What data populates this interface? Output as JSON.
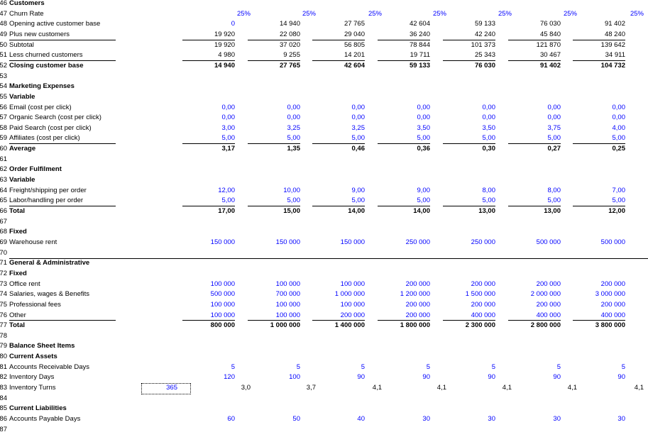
{
  "rows": [
    {
      "n": "46",
      "label": "Customers",
      "bold": true
    },
    {
      "n": "47",
      "label": "Churn Rate",
      "cells": [
        "25%",
        "25%",
        "25%",
        "25%",
        "25%",
        "25%",
        "25%"
      ],
      "blue": true,
      "shift": true
    },
    {
      "n": "48",
      "label": "Opening active customer base",
      "cells": [
        "0",
        "14 940",
        "27 765",
        "42 604",
        "59 133",
        "76 030",
        "91 402"
      ],
      "blueFirst": true
    },
    {
      "n": "49",
      "label": "Plus new customers",
      "cells": [
        "19 920",
        "22 080",
        "29 040",
        "36 240",
        "42 240",
        "45 840",
        "48 240"
      ],
      "ul": true
    },
    {
      "n": "50",
      "label": "Subtotal",
      "cells": [
        "19 920",
        "37 020",
        "56 805",
        "78 844",
        "101 373",
        "121 870",
        "139 642"
      ]
    },
    {
      "n": "51",
      "label": "Less churned customers",
      "cells": [
        "4 980",
        "9 255",
        "14 201",
        "19 711",
        "25 343",
        "30 467",
        "34 911"
      ],
      "ul": true
    },
    {
      "n": "52",
      "label": "Closing customer base",
      "bold": true,
      "cells": [
        "14 940",
        "27 765",
        "42 604",
        "59 133",
        "76 030",
        "91 402",
        "104 732"
      ],
      "cellsBold": true
    },
    {
      "n": "53",
      "label": ""
    },
    {
      "n": "54",
      "label": "Marketing Expenses",
      "bold": true
    },
    {
      "n": "55",
      "label": "Variable",
      "bold": true
    },
    {
      "n": "56",
      "label": "Email (cost per click)",
      "cells": [
        "0,00",
        "0,00",
        "0,00",
        "0,00",
        "0,00",
        "0,00",
        "0,00"
      ],
      "blue": true
    },
    {
      "n": "57",
      "label": "Organic Search (cost per click)",
      "cells": [
        "0,00",
        "0,00",
        "0,00",
        "0,00",
        "0,00",
        "0,00",
        "0,00"
      ],
      "blue": true
    },
    {
      "n": "58",
      "label": "Paid Search (cost per click)",
      "cells": [
        "3,00",
        "3,25",
        "3,25",
        "3,50",
        "3,50",
        "3,75",
        "4,00"
      ],
      "blue": true
    },
    {
      "n": "59",
      "label": "Affiliates (cost per click)",
      "cells": [
        "5,00",
        "5,00",
        "5,00",
        "5,00",
        "5,00",
        "5,00",
        "5,00"
      ],
      "blue": true,
      "ul": true
    },
    {
      "n": "60",
      "label": "Average",
      "bold": true,
      "cells": [
        "3,17",
        "1,35",
        "0,46",
        "0,36",
        "0,30",
        "0,27",
        "0,25"
      ],
      "cellsBold": true
    },
    {
      "n": "61",
      "label": ""
    },
    {
      "n": "62",
      "label": "Order Fulfilment",
      "bold": true
    },
    {
      "n": "63",
      "label": "Variable",
      "bold": true
    },
    {
      "n": "64",
      "label": "Freight/shipping per order",
      "cells": [
        "12,00",
        "10,00",
        "9,00",
        "9,00",
        "8,00",
        "8,00",
        "7,00"
      ],
      "blue": true
    },
    {
      "n": "65",
      "label": "Labor/handling per order",
      "cells": [
        "5,00",
        "5,00",
        "5,00",
        "5,00",
        "5,00",
        "5,00",
        "5,00"
      ],
      "blue": true,
      "ul": true
    },
    {
      "n": "66",
      "label": "Total",
      "bold": true,
      "cells": [
        "17,00",
        "15,00",
        "14,00",
        "14,00",
        "13,00",
        "13,00",
        "12,00"
      ],
      "cellsBold": true
    },
    {
      "n": "67",
      "label": ""
    },
    {
      "n": "68",
      "label": "Fixed",
      "bold": true
    },
    {
      "n": "69",
      "label": "Warehouse rent",
      "cells": [
        "150 000",
        "150 000",
        "150 000",
        "250 000",
        "250 000",
        "500 000",
        "500 000"
      ],
      "blue": true
    },
    {
      "n": "70",
      "label": ""
    },
    {
      "n": "71",
      "label": "General & Administrative",
      "bold": true,
      "topline": true
    },
    {
      "n": "72",
      "label": "Fixed",
      "bold": true
    },
    {
      "n": "73",
      "label": "Office rent",
      "cells": [
        "100 000",
        "100 000",
        "100 000",
        "200 000",
        "200 000",
        "200 000",
        "200 000"
      ],
      "blue": true
    },
    {
      "n": "74",
      "label": "Salaries, wages & Benefits",
      "cells": [
        "500 000",
        "700 000",
        "1 000 000",
        "1 200 000",
        "1 500 000",
        "2 000 000",
        "3 000 000"
      ],
      "blue": true
    },
    {
      "n": "75",
      "label": "Professional fees",
      "cells": [
        "100 000",
        "100 000",
        "100 000",
        "200 000",
        "200 000",
        "200 000",
        "200 000"
      ],
      "blue": true
    },
    {
      "n": "76",
      "label": "Other",
      "cells": [
        "100 000",
        "100 000",
        "200 000",
        "200 000",
        "400 000",
        "400 000",
        "400 000"
      ],
      "blue": true,
      "ul": true
    },
    {
      "n": "77",
      "label": "Total",
      "bold": true,
      "cells": [
        "800 000",
        "1 000 000",
        "1 400 000",
        "1 800 000",
        "2 300 000",
        "2 800 000",
        "3 800 000"
      ],
      "cellsBold": true
    },
    {
      "n": "78",
      "label": ""
    },
    {
      "n": "79",
      "label": "Balance Sheet Items",
      "bold": true
    },
    {
      "n": "80",
      "label": "Current Assets",
      "bold": true
    },
    {
      "n": "81",
      "label": "Accounts Receivable Days",
      "cells": [
        "5",
        "5",
        "5",
        "5",
        "5",
        "5",
        "5"
      ],
      "blue": true
    },
    {
      "n": "82",
      "label": "Inventory Days",
      "cells": [
        "120",
        "100",
        "90",
        "90",
        "90",
        "90",
        "90"
      ],
      "blue": true
    },
    {
      "n": "83",
      "label": "Inventory Turns",
      "extraCells": [
        "3,0",
        "3,7",
        "4,1",
        "4,1",
        "4,1",
        "4,1",
        "4,1"
      ],
      "selected": "365"
    },
    {
      "n": "84",
      "label": ""
    },
    {
      "n": "85",
      "label": "Current Liabilities",
      "bold": true
    },
    {
      "n": "86",
      "label": "Accounts Payable Days",
      "cells": [
        "60",
        "50",
        "40",
        "30",
        "30",
        "30",
        "30"
      ],
      "blue": true
    },
    {
      "n": "87",
      "label": ""
    }
  ]
}
